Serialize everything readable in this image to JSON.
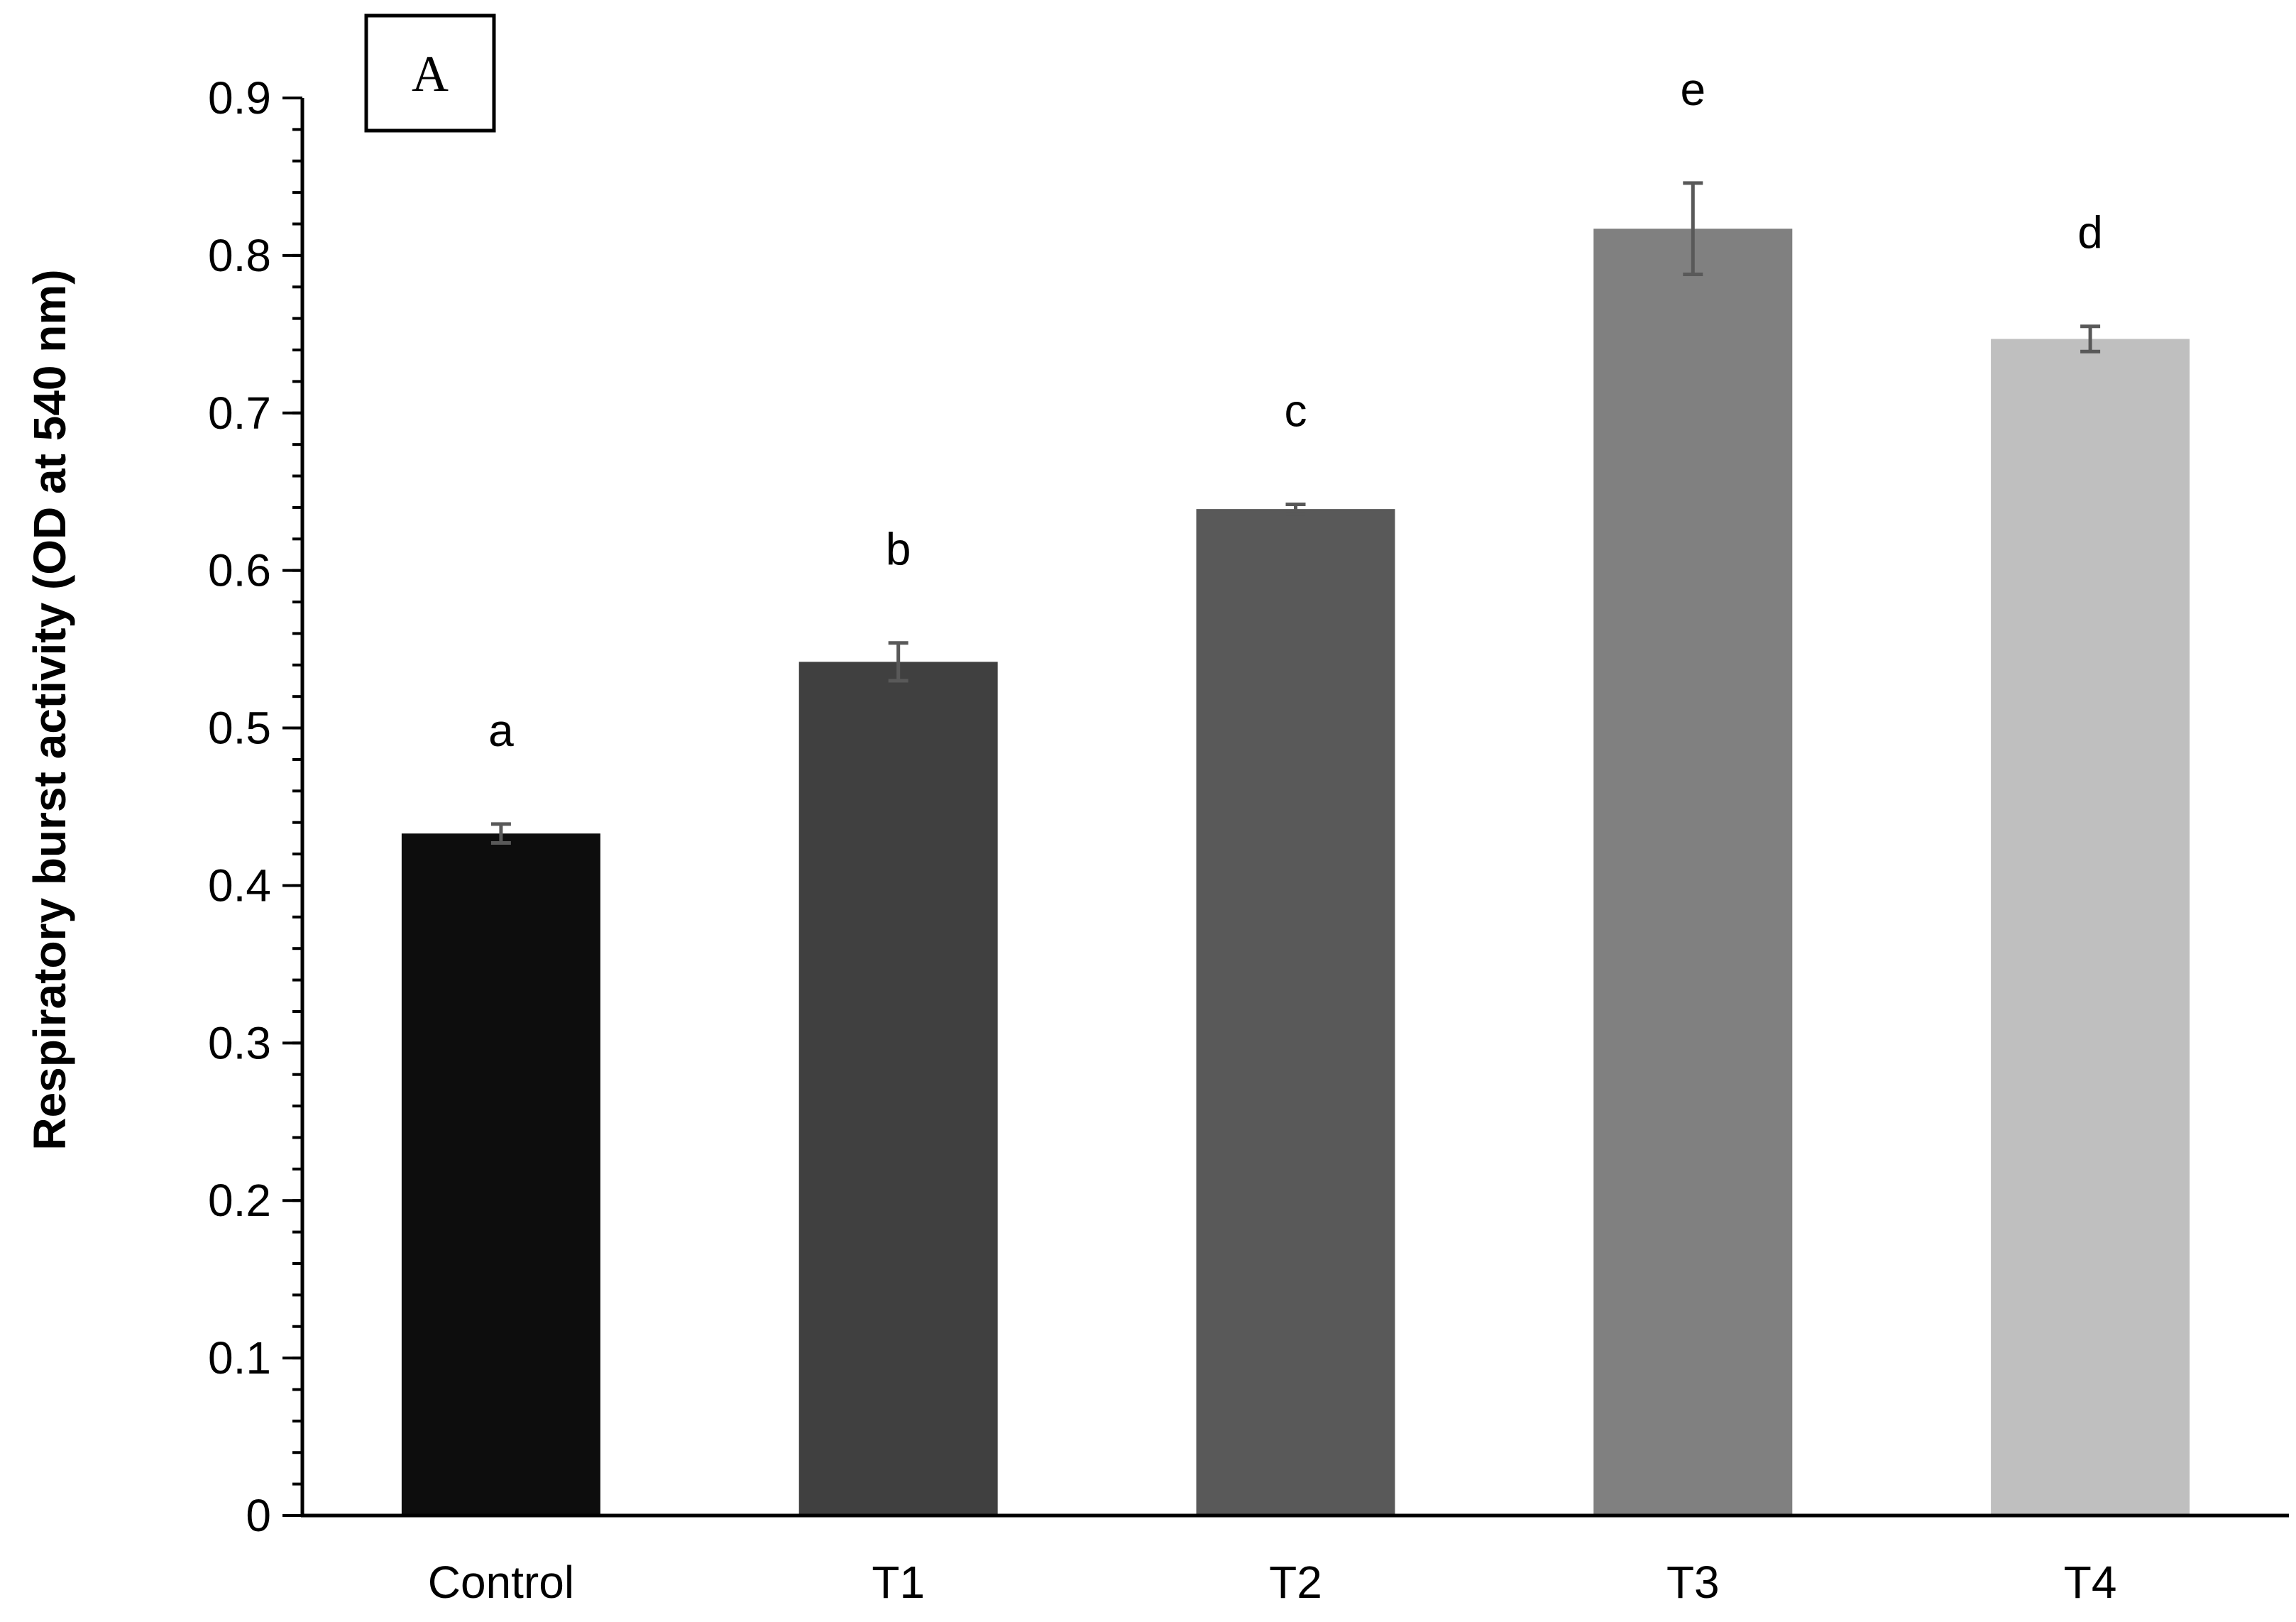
{
  "chart_data": {
    "type": "bar",
    "panel_label": "A",
    "ylabel": "Respiratory burst activity (OD at 540 nm)",
    "xlabel": "",
    "ylim": [
      0,
      0.9
    ],
    "yticks": [
      "0",
      "0.1",
      "0.2",
      "0.3",
      "0.4",
      "0.5",
      "0.6",
      "0.7",
      "0.8",
      "0.9"
    ],
    "y_minor_step": 0.02,
    "grid": false,
    "categories": [
      "Control",
      "T1",
      "T2",
      "T3",
      "T4"
    ],
    "values": [
      0.433,
      0.542,
      0.639,
      0.817,
      0.747
    ],
    "errors": [
      0.006,
      0.012,
      0.003,
      0.029,
      0.008
    ],
    "significance_letters": [
      "a",
      "b",
      "c",
      "e",
      "d"
    ],
    "colors": [
      "#0d0d0d",
      "#404040",
      "#595959",
      "#808080",
      "#bfbfbf"
    ],
    "error_bar_color": "#595959"
  }
}
